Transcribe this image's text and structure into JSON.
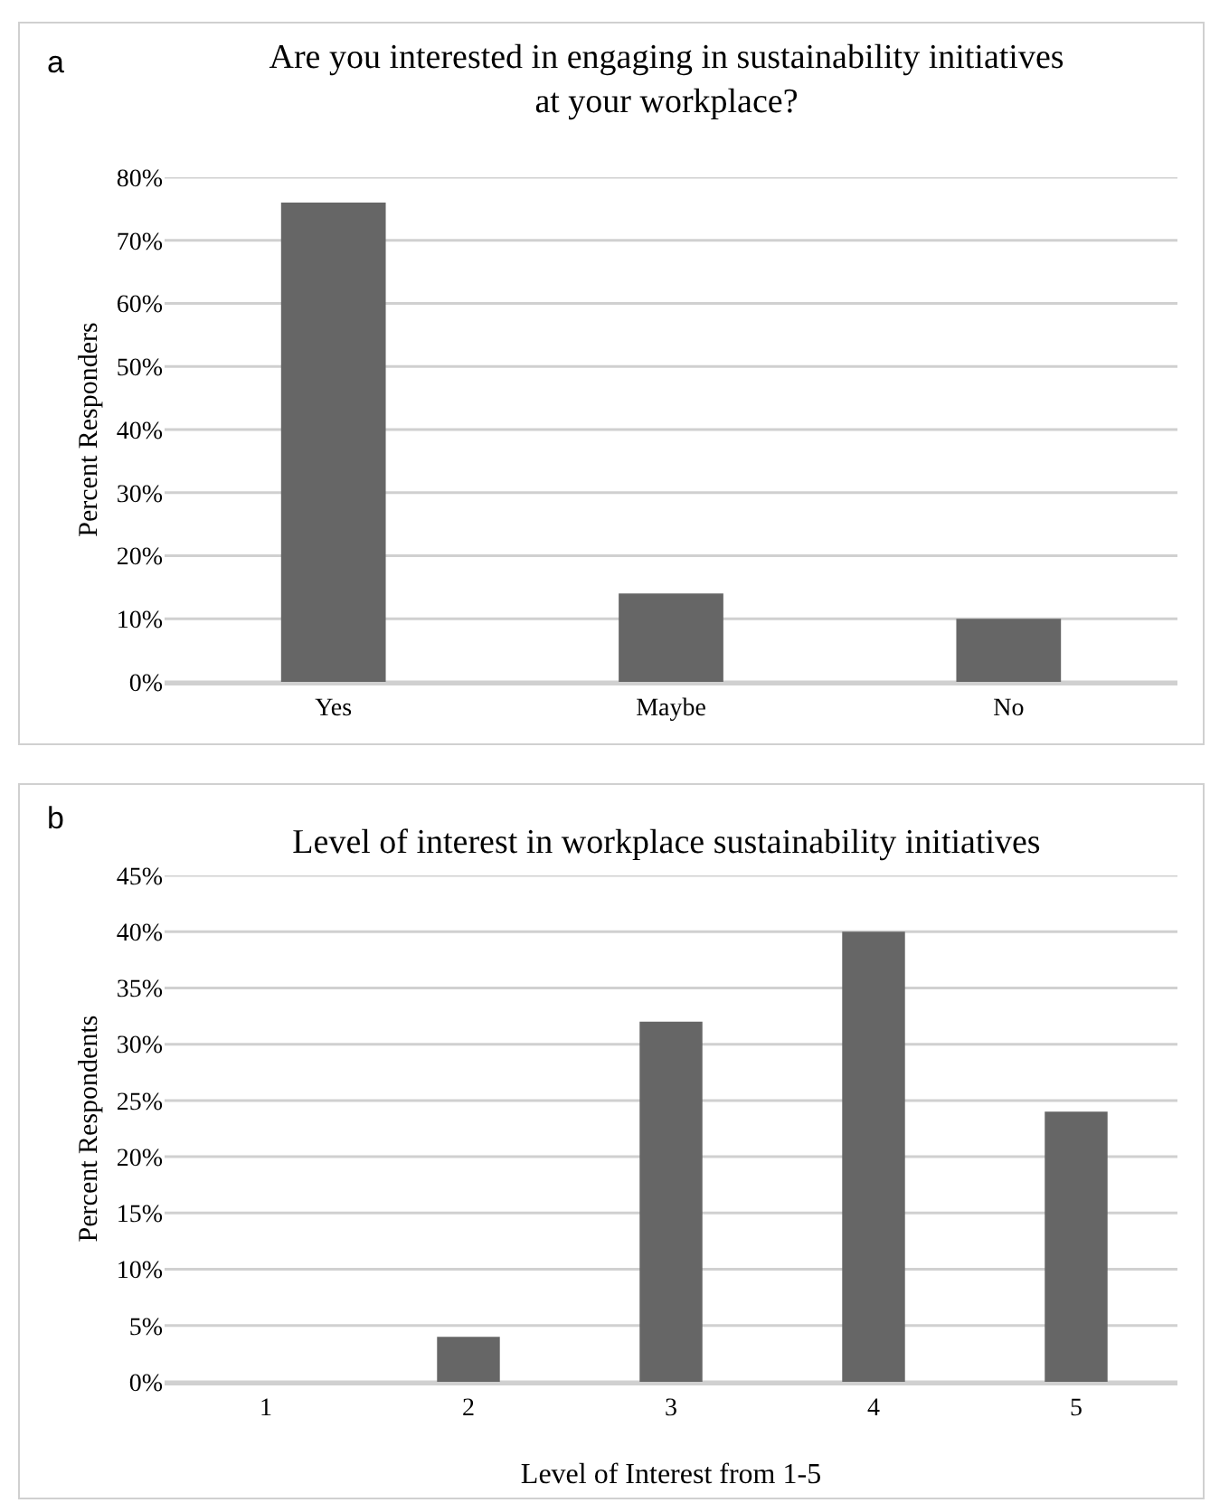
{
  "chart_data": [
    {
      "type": "bar",
      "title": "Are you interested in engaging in sustainability initiatives\nat your workplace?",
      "ylabel": "Percent Responders",
      "annotations": [
        "a"
      ],
      "categories": [
        "Yes",
        "Maybe",
        "No"
      ],
      "values": [
        76,
        14,
        10
      ],
      "color": "#666666",
      "ylim": [
        0,
        80
      ],
      "yticks": [
        {
          "value": 0,
          "label": "0%"
        },
        {
          "value": 10,
          "label": "10%"
        },
        {
          "value": 20,
          "label": "20%"
        },
        {
          "value": 30,
          "label": "30%"
        },
        {
          "value": 40,
          "label": "40%"
        },
        {
          "value": 50,
          "label": "50%"
        },
        {
          "value": 60,
          "label": "60%"
        },
        {
          "value": 70,
          "label": "70%"
        },
        {
          "value": 80,
          "label": "80%"
        }
      ],
      "grid": "y"
    },
    {
      "type": "bar",
      "title": "Level of interest in workplace sustainability initiatives",
      "xlabel": "Level of Interest from 1-5",
      "ylabel": "Percent Respondents",
      "annotations": [
        "b"
      ],
      "categories": [
        "1",
        "2",
        "3",
        "4",
        "5"
      ],
      "values": [
        0,
        4,
        32,
        40,
        24
      ],
      "color": "#666666",
      "ylim": [
        0,
        45
      ],
      "yticks": [
        {
          "value": 0,
          "label": "0%"
        },
        {
          "value": 5,
          "label": "5%"
        },
        {
          "value": 10,
          "label": "10%"
        },
        {
          "value": 15,
          "label": "15%"
        },
        {
          "value": 20,
          "label": "20%"
        },
        {
          "value": 25,
          "label": "25%"
        },
        {
          "value": 30,
          "label": "30%"
        },
        {
          "value": 35,
          "label": "35%"
        },
        {
          "value": 40,
          "label": "40%"
        },
        {
          "value": 45,
          "label": "45%"
        }
      ],
      "grid": "y"
    }
  ]
}
